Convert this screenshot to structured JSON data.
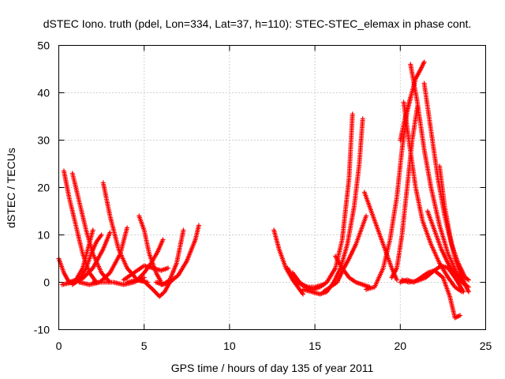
{
  "chart_data": {
    "type": "scatter",
    "title": "dSTEC Iono. truth (pdel, Lon=334, Lat=37, h=110): STEC-STEC_elemax in phase cont.",
    "xlabel": "GPS time / hours of day 135 of year 2011",
    "ylabel": "dSTEC  / TECUs",
    "xlim": [
      0,
      25
    ],
    "ylim": [
      -10,
      50
    ],
    "x_ticks": [
      0,
      5,
      10,
      15,
      20,
      25
    ],
    "y_ticks": [
      -10,
      0,
      10,
      20,
      30,
      40,
      50
    ],
    "x_tick_labels": [
      "0",
      "5",
      "10",
      "15",
      "20",
      "25"
    ],
    "y_tick_labels": [
      "-10",
      "0",
      "10",
      "20",
      "30",
      "40",
      "50"
    ],
    "grid": true,
    "legend": "none",
    "marker": "plus",
    "color": "#ff0000",
    "series": [
      {
        "x": [
          0.0,
          0.3,
          0.6,
          1.0,
          1.4,
          1.7,
          2.0
        ],
        "y": [
          5,
          2,
          0,
          0.5,
          3,
          7,
          11
        ]
      },
      {
        "x": [
          0.3,
          0.6,
          1.0,
          1.4,
          1.8,
          2.2
        ],
        "y": [
          23.5,
          18,
          12,
          6,
          2,
          0
        ]
      },
      {
        "x": [
          0.8,
          1.2,
          1.6,
          2.0,
          2.5,
          3.0
        ],
        "y": [
          23,
          17,
          11,
          6,
          2,
          0
        ]
      },
      {
        "x": [
          0.2,
          0.8,
          1.4,
          2.0,
          2.6,
          3.0
        ],
        "y": [
          -0.5,
          0,
          0.8,
          3,
          7,
          10.5
        ]
      },
      {
        "x": [
          0.8,
          1.2,
          1.6,
          1.9,
          2.2,
          2.5
        ],
        "y": [
          -0.5,
          0.5,
          3,
          6,
          8.5,
          10
        ]
      },
      {
        "x": [
          2.6,
          3.0,
          3.5,
          4.0,
          4.6,
          5.2
        ],
        "y": [
          21,
          14,
          7,
          3,
          0.5,
          0
        ]
      },
      {
        "x": [
          1.2,
          1.8,
          2.4,
          3.0,
          3.6,
          4.0
        ],
        "y": [
          0,
          -0.5,
          0,
          2,
          6,
          11.5
        ]
      },
      {
        "x": [
          2.0,
          2.6,
          3.2,
          3.8,
          4.4,
          5.0
        ],
        "y": [
          0,
          0,
          0,
          -0.5,
          0,
          1
        ]
      },
      {
        "x": [
          4.7,
          5.0,
          5.3,
          5.7,
          6.0
        ],
        "y": [
          14,
          11,
          6,
          2,
          0
        ]
      },
      {
        "x": [
          4.0,
          4.6,
          5.0,
          5.4,
          5.8,
          6.1
        ],
        "y": [
          0,
          0.5,
          2,
          4,
          6.5,
          9
        ]
      },
      {
        "x": [
          3.8,
          4.4,
          5.0,
          5.5,
          6.0,
          6.4
        ],
        "y": [
          0.5,
          2,
          3.5,
          3,
          2.5,
          3
        ]
      },
      {
        "x": [
          4.5,
          5.0,
          5.5,
          5.9,
          6.2,
          6.5
        ],
        "y": [
          0.5,
          0.2,
          -1.5,
          -3,
          -2,
          0
        ]
      },
      {
        "x": [
          5.7,
          6.1,
          6.5,
          6.9,
          7.3
        ],
        "y": [
          0,
          -0.5,
          0.5,
          4,
          11
        ]
      },
      {
        "x": [
          6.0,
          6.5,
          7.0,
          7.5,
          8.0,
          8.2
        ],
        "y": [
          -0.5,
          0,
          1.5,
          4.5,
          9,
          12
        ]
      },
      {
        "x": [
          12.6,
          12.9,
          13.3,
          13.7,
          14.0,
          14.3
        ],
        "y": [
          11,
          7,
          3,
          0.5,
          -1,
          -2.5
        ]
      },
      {
        "x": [
          13.4,
          13.8,
          14.2,
          14.6,
          15.0,
          15.5
        ],
        "y": [
          3,
          0.5,
          -0.5,
          -1,
          -1,
          -0.5
        ]
      },
      {
        "x": [
          13.7,
          14.1,
          14.5,
          14.9,
          15.3,
          15.7,
          16.2,
          16.6,
          17.0,
          17.2
        ],
        "y": [
          2,
          0,
          -1,
          -1.5,
          -1,
          0,
          3,
          9,
          22,
          35.5
        ]
      },
      {
        "x": [
          14.3,
          14.8,
          15.3,
          15.7,
          16.1,
          16.5,
          16.9,
          17.3,
          17.6,
          17.8
        ],
        "y": [
          -1.5,
          -2,
          -2.5,
          -2,
          0,
          3,
          8,
          16,
          25,
          34.5
        ]
      },
      {
        "x": [
          15.5,
          15.9,
          16.3,
          16.7,
          17.0,
          17.4,
          17.8,
          18.0
        ],
        "y": [
          -2,
          -1,
          0,
          3,
          5,
          8,
          12,
          14
        ]
      },
      {
        "x": [
          16.2,
          16.6,
          17.0,
          17.4,
          17.8,
          18.2
        ],
        "y": [
          5.5,
          3,
          1,
          0,
          -0.5,
          -1
        ]
      },
      {
        "x": [
          17.9,
          18.3,
          18.7,
          19.1,
          19.5,
          19.8
        ],
        "y": [
          19,
          15,
          11,
          7,
          3,
          0.5
        ]
      },
      {
        "x": [
          18.0,
          18.5,
          19.0,
          19.4,
          19.8,
          20.1,
          20.4,
          20.6
        ],
        "y": [
          -1.5,
          -1,
          3,
          9,
          18,
          28,
          36,
          39
        ]
      },
      {
        "x": [
          19.5,
          19.8,
          20.1,
          20.4,
          20.7,
          21.0
        ],
        "y": [
          1,
          3,
          10,
          20,
          30,
          37
        ]
      },
      {
        "x": [
          20.0,
          20.3,
          20.6,
          20.9,
          21.2,
          21.4
        ],
        "y": [
          30,
          35,
          39,
          43,
          45,
          46.5
        ]
      },
      {
        "x": [
          20.2,
          20.5,
          20.9,
          21.3,
          21.8,
          22.3,
          22.8,
          23.2,
          23.6
        ],
        "y": [
          38,
          30,
          20,
          13,
          8,
          4,
          1,
          -1,
          -2
        ]
      },
      {
        "x": [
          20.6,
          21.0,
          21.4,
          21.8,
          22.3,
          22.8,
          23.3,
          23.8
        ],
        "y": [
          46,
          38,
          28,
          20,
          12,
          6,
          2,
          -0.5
        ]
      },
      {
        "x": [
          21.4,
          21.8,
          22.2,
          22.6,
          23.0,
          23.4,
          23.8,
          24.0
        ],
        "y": [
          42,
          32,
          22,
          14,
          8,
          4,
          1,
          0.5
        ]
      },
      {
        "x": [
          20.1,
          20.5,
          21.0,
          21.5,
          22.0,
          22.5,
          22.9,
          23.2,
          23.5
        ],
        "y": [
          0.5,
          0,
          0.3,
          1,
          2.5,
          1,
          -3,
          -7.5,
          -7
        ]
      },
      {
        "x": [
          20.0,
          20.4,
          20.8,
          21.2,
          21.6,
          22.0,
          22.4,
          22.8,
          23.2,
          23.7
        ],
        "y": [
          0,
          0.5,
          0,
          1,
          2,
          2.5,
          3.5,
          3,
          1,
          -2
        ]
      },
      {
        "x": [
          22.3,
          22.6,
          22.9,
          23.2,
          23.5,
          23.8,
          24.0
        ],
        "y": [
          24.5,
          16,
          10,
          5,
          2,
          -0.5,
          -2
        ]
      },
      {
        "x": [
          21.6,
          22.0,
          22.4,
          22.8,
          23.2,
          23.6,
          24.0
        ],
        "y": [
          15,
          11,
          7,
          4,
          1.5,
          0,
          -1
        ]
      }
    ]
  }
}
